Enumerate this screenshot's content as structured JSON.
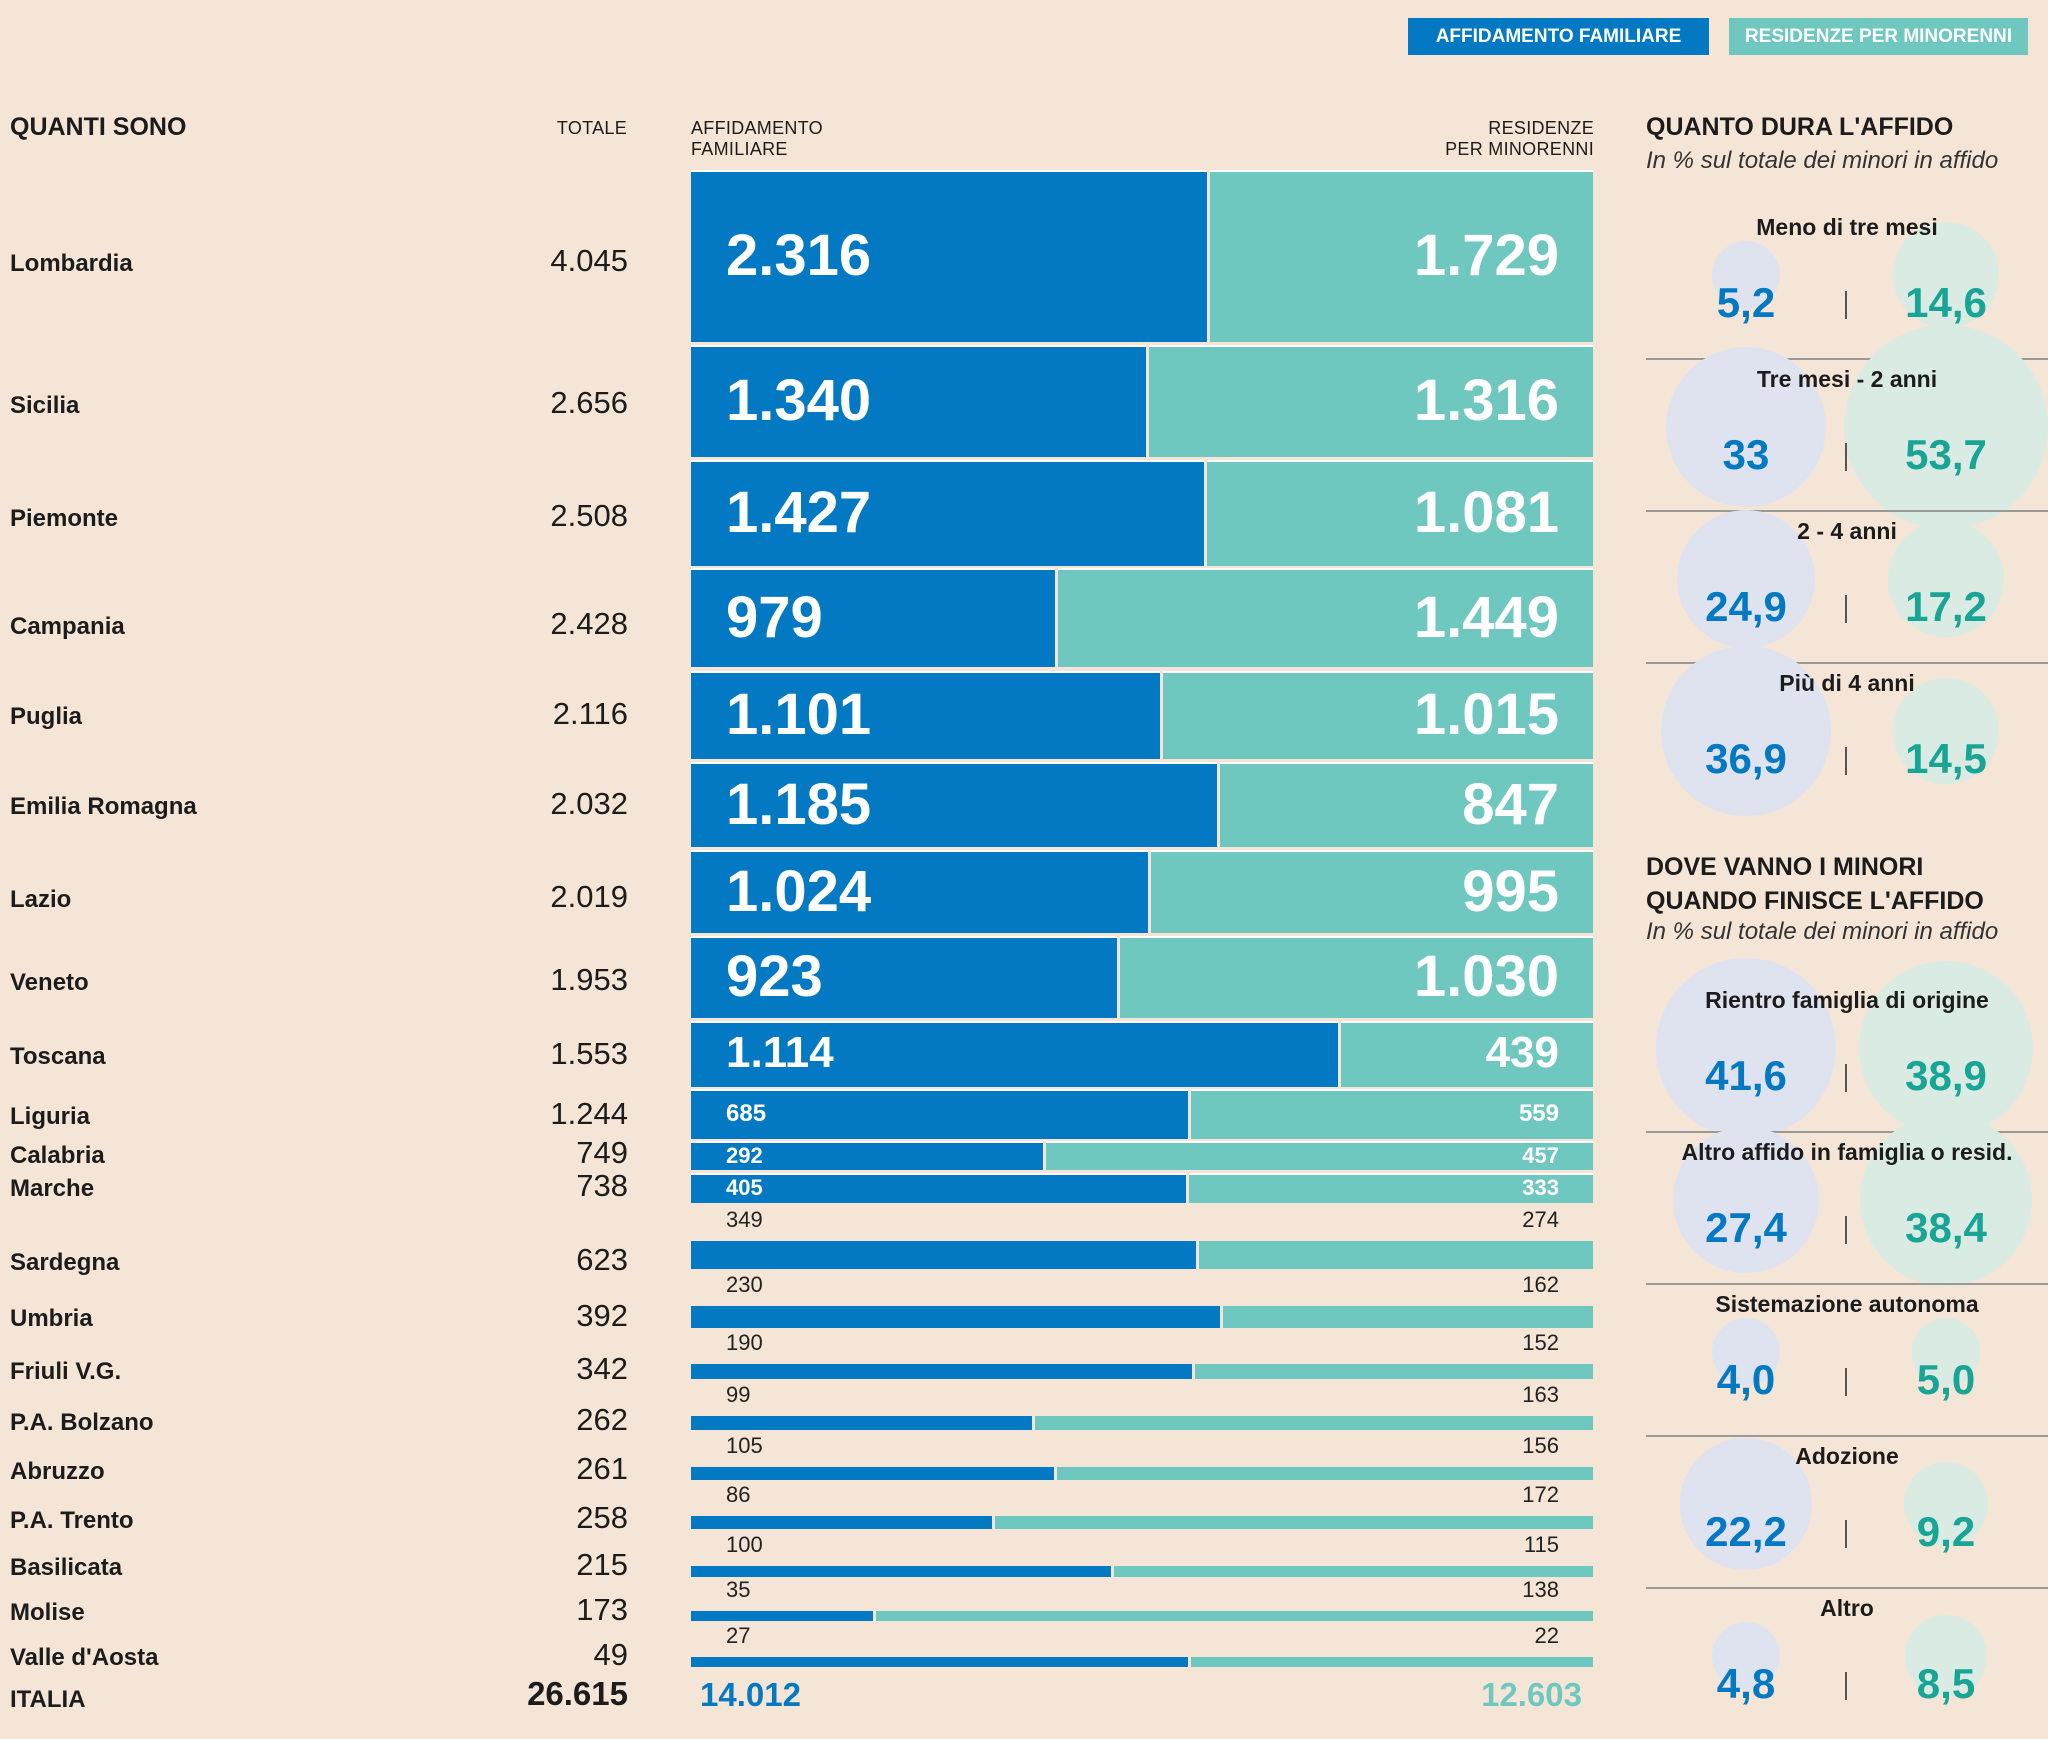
{
  "legend": {
    "foster_label": "AFFIDAMENTO FAMILIARE",
    "residence_label": "RESIDENZE PER MINORENNI"
  },
  "colors": {
    "foster": "#0479c3",
    "residence": "#6ec8bf",
    "foster_bubble": "#dfe3ef",
    "residence_bubble": "#d9ebe2"
  },
  "headers": {
    "quanti_sono": "QUANTI SONO",
    "totale": "TOTALE",
    "affidamento_line1": "AFFIDAMENTO",
    "affidamento_line2": "FAMILIARE",
    "residenze_line1": "RESIDENZE",
    "residenze_line2": "PER MINORENNI"
  },
  "chart_data": {
    "type": "bar",
    "orientation": "horizontal-stacked-100",
    "title": "QUANTI SONO",
    "series": [
      {
        "name": "AFFIDAMENTO FAMILIARE",
        "values": [
          2316,
          1340,
          1427,
          979,
          1101,
          1185,
          1024,
          923,
          1114,
          685,
          292,
          405,
          349,
          230,
          190,
          99,
          105,
          86,
          100,
          35,
          27
        ]
      },
      {
        "name": "RESIDENZE PER MINORENNI",
        "values": [
          1729,
          1316,
          1081,
          1449,
          1015,
          847,
          995,
          1030,
          439,
          559,
          457,
          333,
          274,
          162,
          152,
          163,
          156,
          172,
          115,
          138,
          22
        ]
      }
    ],
    "rows": [
      {
        "region": "Lombardia",
        "total": "4.045",
        "a": 2316,
        "r": 1729,
        "a_label": "2.316",
        "r_label": "1.729"
      },
      {
        "region": "Sicilia",
        "total": "2.656",
        "a": 1340,
        "r": 1316,
        "a_label": "1.340",
        "r_label": "1.316"
      },
      {
        "region": "Piemonte",
        "total": "2.508",
        "a": 1427,
        "r": 1081,
        "a_label": "1.427",
        "r_label": "1.081"
      },
      {
        "region": "Campania",
        "total": "2.428",
        "a": 979,
        "r": 1449,
        "a_label": "979",
        "r_label": "1.449"
      },
      {
        "region": "Puglia",
        "total": "2.116",
        "a": 1101,
        "r": 1015,
        "a_label": "1.101",
        "r_label": "1.015"
      },
      {
        "region": "Emilia Romagna",
        "total": "2.032",
        "a": 1185,
        "r": 847,
        "a_label": "1.185",
        "r_label": "847"
      },
      {
        "region": "Lazio",
        "total": "2.019",
        "a": 1024,
        "r": 995,
        "a_label": "1.024",
        "r_label": "995"
      },
      {
        "region": "Veneto",
        "total": "1.953",
        "a": 923,
        "r": 1030,
        "a_label": "923",
        "r_label": "1.030"
      },
      {
        "region": "Toscana",
        "total": "1.553",
        "a": 1114,
        "r": 439,
        "a_label": "1.114",
        "r_label": "439"
      },
      {
        "region": "Liguria",
        "total": "1.244",
        "a": 685,
        "r": 559,
        "a_label": "685",
        "r_label": "559"
      },
      {
        "region": "Calabria",
        "total": "749",
        "a": 292,
        "r": 457,
        "a_label": "292",
        "r_label": "457"
      },
      {
        "region": "Marche",
        "total": "738",
        "a": 405,
        "r": 333,
        "a_label": "405",
        "r_label": "333"
      },
      {
        "region": "Sardegna",
        "total": "623",
        "a": 349,
        "r": 274,
        "a_label": "349",
        "r_label": "274"
      },
      {
        "region": "Umbria",
        "total": "392",
        "a": 230,
        "r": 162,
        "a_label": "230",
        "r_label": "162"
      },
      {
        "region": "Friuli V.G.",
        "total": "342",
        "a": 190,
        "r": 152,
        "a_label": "190",
        "r_label": "152"
      },
      {
        "region": "P.A. Bolzano",
        "total": "262",
        "a": 99,
        "r": 163,
        "a_label": "99",
        "r_label": "163"
      },
      {
        "region": "Abruzzo",
        "total": "261",
        "a": 105,
        "r": 156,
        "a_label": "105",
        "r_label": "156"
      },
      {
        "region": "P.A. Trento",
        "total": "258",
        "a": 86,
        "r": 172,
        "a_label": "86",
        "r_label": "172"
      },
      {
        "region": "Basilicata",
        "total": "215",
        "a": 100,
        "r": 115,
        "a_label": "100",
        "r_label": "115"
      },
      {
        "region": "Molise",
        "total": "173",
        "a": 35,
        "r": 138,
        "a_label": "35",
        "r_label": "138"
      },
      {
        "region": "Valle d'Aosta",
        "total": "49",
        "a": 27,
        "r": 22,
        "a_label": "27",
        "r_label": "22"
      }
    ],
    "italia": {
      "label": "ITALIA",
      "total": "26.615",
      "a_label": "14.012",
      "r_label": "12.603"
    }
  },
  "duration": {
    "title": "QUANTO DURA L'AFFIDO",
    "subtitle": "In % sul totale dei minori in affido",
    "items": [
      {
        "label": "Meno di tre mesi",
        "a": 5.2,
        "r": 14.6,
        "a_label": "5,2",
        "r_label": "14,6"
      },
      {
        "label": "Tre mesi - 2 anni",
        "a": 33,
        "r": 53.7,
        "a_label": "33",
        "r_label": "53,7"
      },
      {
        "label": "2 - 4 anni",
        "a": 24.9,
        "r": 17.2,
        "a_label": "24,9",
        "r_label": "17,2"
      },
      {
        "label": "Più di 4 anni",
        "a": 36.9,
        "r": 14.5,
        "a_label": "36,9",
        "r_label": "14,5"
      }
    ]
  },
  "destination": {
    "title_line1": "DOVE VANNO I MINORI",
    "title_line2": "QUANDO FINISCE L'AFFIDO",
    "subtitle": "In % sul totale dei minori in affido",
    "items": [
      {
        "label": "Rientro famiglia di origine",
        "a": 41.6,
        "r": 38.9,
        "a_label": "41,6",
        "r_label": "38,9"
      },
      {
        "label": "Altro affido in famiglia o resid.",
        "a": 27.4,
        "r": 38.4,
        "a_label": "27,4",
        "r_label": "38,4"
      },
      {
        "label": "Sistemazione autonoma",
        "a": 4.0,
        "r": 5.0,
        "a_label": "4,0",
        "r_label": "5,0"
      },
      {
        "label": "Adozione",
        "a": 22.2,
        "r": 9.2,
        "a_label": "22,2",
        "r_label": "9,2"
      },
      {
        "label": "Altro",
        "a": 4.8,
        "r": 8.5,
        "a_label": "4,8",
        "r_label": "8,5"
      }
    ]
  }
}
